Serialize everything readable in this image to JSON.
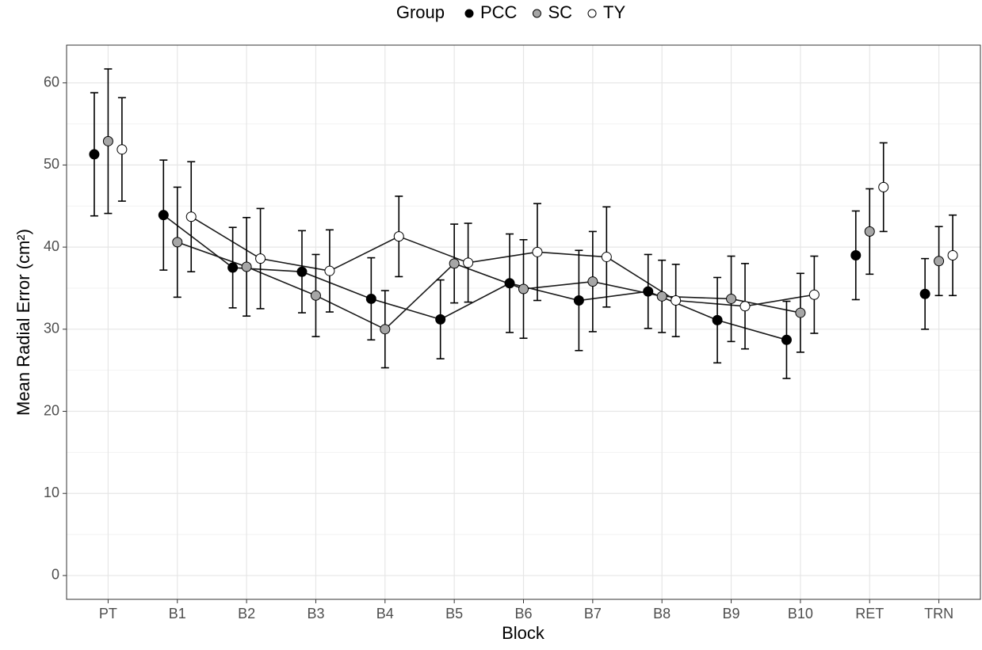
{
  "chart_data": {
    "type": "line_errorbar",
    "x_label": "Block",
    "y_label": "Mean Radial Error (cm²)",
    "legend_title": "Group",
    "legend_position": "top",
    "categories": [
      "PT",
      "B1",
      "B2",
      "B3",
      "B4",
      "B5",
      "B6",
      "B7",
      "B8",
      "B9",
      "B10",
      "RET",
      "TRN"
    ],
    "connected_categories": [
      "B1",
      "B10"
    ],
    "series": [
      {
        "name": "PCC",
        "color": "#000000",
        "values": [
          51.3,
          43.9,
          37.5,
          37.0,
          33.7,
          31.2,
          35.6,
          33.5,
          34.6,
          31.1,
          28.7,
          39.0,
          34.3
        ],
        "errors": [
          7.5,
          6.7,
          4.9,
          5.0,
          5.0,
          4.8,
          6.0,
          6.1,
          4.5,
          5.2,
          4.7,
          5.4,
          4.3
        ]
      },
      {
        "name": "SC",
        "color": "#a6a6a6",
        "values": [
          52.9,
          40.6,
          37.6,
          34.1,
          30.0,
          38.0,
          34.9,
          35.8,
          34.0,
          33.7,
          32.0,
          41.9,
          38.3
        ],
        "errors": [
          8.8,
          6.7,
          6.0,
          5.0,
          4.7,
          4.8,
          6.0,
          6.1,
          4.4,
          5.2,
          4.8,
          5.2,
          4.2
        ]
      },
      {
        "name": "TY",
        "color": "#ffffff",
        "values": [
          51.9,
          43.7,
          38.6,
          37.1,
          41.3,
          38.1,
          39.4,
          38.8,
          33.5,
          32.8,
          34.2,
          47.3,
          39.0
        ],
        "errors": [
          6.3,
          6.7,
          6.1,
          5.0,
          4.9,
          4.8,
          5.9,
          6.1,
          4.4,
          5.2,
          4.7,
          5.4,
          4.9
        ]
      }
    ],
    "ylim": [
      -2.9,
      64.6
    ],
    "yticks": [
      0,
      10,
      20,
      30,
      40,
      50,
      60
    ],
    "yminor": [
      5,
      15,
      25,
      35,
      45,
      55
    ],
    "grid": true
  }
}
